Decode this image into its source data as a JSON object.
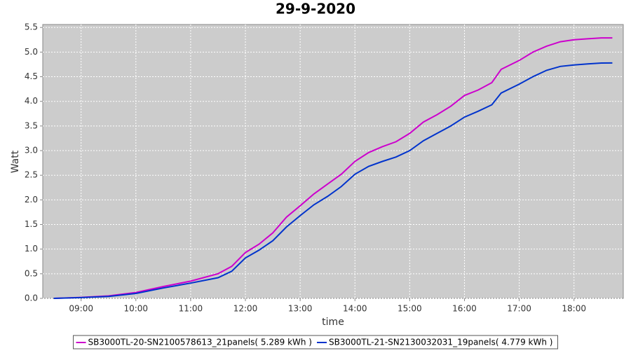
{
  "chart_data": {
    "type": "line",
    "title": "29-9-2020",
    "x_label": "time",
    "y_label": "Watt",
    "x": [
      8.5,
      9,
      9.5,
      10,
      10.5,
      11,
      11.5,
      11.75,
      12,
      12.25,
      12.5,
      12.75,
      13,
      13.25,
      13.5,
      13.75,
      14,
      14.25,
      14.5,
      14.75,
      15,
      15.25,
      15.5,
      15.75,
      16,
      16.25,
      16.5,
      16.67,
      17,
      17.25,
      17.5,
      17.75,
      18,
      18.25,
      18.5,
      18.7
    ],
    "series": [
      {
        "name": "SB3000TL-20-SN2100578613_21panels( 5.289 kWh )",
        "color": "#cc00cc",
        "values": [
          0,
          0.02,
          0.05,
          0.12,
          0.24,
          0.35,
          0.5,
          0.65,
          0.93,
          1.1,
          1.33,
          1.65,
          1.88,
          2.12,
          2.32,
          2.52,
          2.78,
          2.96,
          3.08,
          3.18,
          3.35,
          3.58,
          3.73,
          3.9,
          4.12,
          4.23,
          4.38,
          4.65,
          4.83,
          5.0,
          5.12,
          5.21,
          5.25,
          5.27,
          5.289,
          5.289
        ]
      },
      {
        "name": "SB3000TL-21-SN2130032031_19panels( 4.779 kWh )",
        "color": "#0033cc",
        "values": [
          0,
          0.015,
          0.04,
          0.1,
          0.21,
          0.31,
          0.42,
          0.55,
          0.82,
          0.98,
          1.17,
          1.45,
          1.68,
          1.9,
          2.07,
          2.27,
          2.52,
          2.68,
          2.78,
          2.87,
          3.0,
          3.2,
          3.35,
          3.5,
          3.68,
          3.8,
          3.93,
          4.17,
          4.35,
          4.5,
          4.63,
          4.71,
          4.74,
          4.76,
          4.778,
          4.779
        ]
      }
    ],
    "xlim": [
      8.3,
      18.9
    ],
    "xticks": [
      {
        "value": 9,
        "label": "09:00"
      },
      {
        "value": 10,
        "label": "10:00"
      },
      {
        "value": 11,
        "label": "11:00"
      },
      {
        "value": 12,
        "label": "12:00"
      },
      {
        "value": 13,
        "label": "13:00"
      },
      {
        "value": 14,
        "label": "14:00"
      },
      {
        "value": 15,
        "label": "15:00"
      },
      {
        "value": 16,
        "label": "16:00"
      },
      {
        "value": 17,
        "label": "17:00"
      },
      {
        "value": 18,
        "label": "18:00"
      }
    ],
    "ylim": [
      0,
      5.56
    ],
    "yticks": [
      {
        "value": 0,
        "label": "0.0"
      },
      0.5,
      {
        "value": 1,
        "label": "1.0"
      },
      1.5,
      {
        "value": 2,
        "label": "2.0"
      },
      2.5,
      {
        "value": 3,
        "label": "3.0"
      },
      3.5,
      {
        "value": 4,
        "label": "4.0"
      },
      4.5,
      {
        "value": 5,
        "label": "5.0"
      },
      5.5
    ],
    "grid": true,
    "legend": "bottom",
    "plot_background": "#cccccc"
  }
}
